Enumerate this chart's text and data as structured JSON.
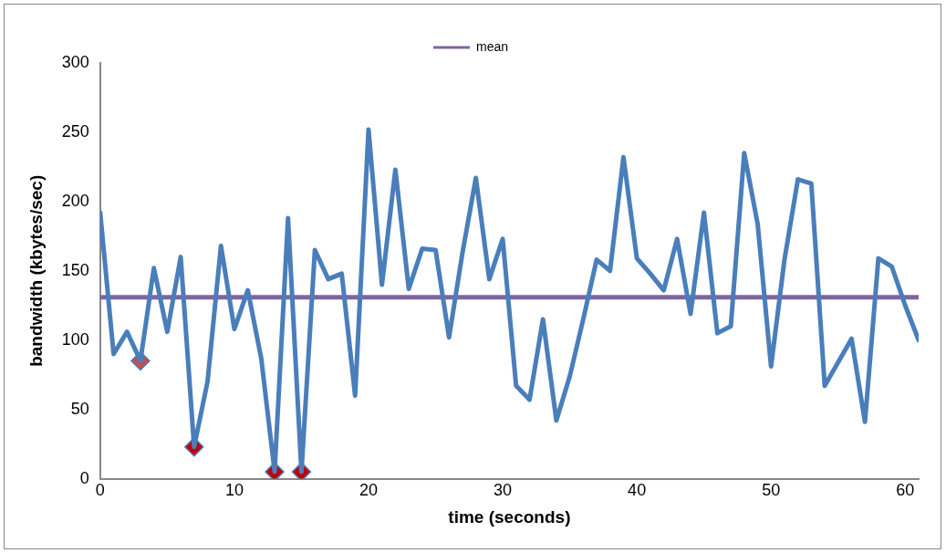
{
  "chart_data": {
    "type": "line",
    "xlabel": "time (seconds)",
    "ylabel": "bandwidth (kbytes/sec)",
    "x": [
      0,
      1,
      2,
      3,
      4,
      5,
      6,
      7,
      8,
      9,
      10,
      11,
      12,
      13,
      14,
      15,
      16,
      17,
      18,
      19,
      20,
      21,
      22,
      23,
      24,
      25,
      26,
      27,
      28,
      29,
      30,
      31,
      32,
      33,
      34,
      35,
      36,
      37,
      38,
      39,
      40,
      41,
      42,
      43,
      44,
      45,
      46,
      47,
      48,
      49,
      50,
      51,
      52,
      53,
      54,
      55,
      56,
      57,
      58,
      59,
      60,
      61
    ],
    "series": [
      {
        "color": "#4a7ebb",
        "marker": "none",
        "values": [
          192,
          90,
          106,
          85,
          152,
          106,
          160,
          23,
          70,
          168,
          108,
          136,
          87,
          5,
          188,
          5,
          165,
          144,
          148,
          60,
          252,
          140,
          223,
          137,
          166,
          165,
          102,
          163,
          217,
          144,
          173,
          67,
          57,
          115,
          42,
          74,
          115,
          158,
          150,
          232,
          159,
          148,
          136,
          173,
          119,
          192,
          105,
          110,
          235,
          184,
          81,
          158,
          216,
          213,
          67,
          84,
          101,
          41,
          159,
          153,
          125,
          100
        ]
      },
      {
        "name": "mean",
        "color": "#8064a2",
        "marker": "none",
        "x": [
          0,
          61
        ],
        "values": [
          131,
          131
        ]
      },
      {
        "type": "scatter",
        "marker": "diamond",
        "colors": [
          "#c0504d",
          "#c00000",
          "#c00000",
          "#c00000"
        ],
        "x": [
          3,
          7,
          13,
          15
        ],
        "values": [
          85,
          23,
          5,
          5
        ]
      }
    ],
    "xlim": [
      0,
      61
    ],
    "xticks": [
      0,
      10,
      20,
      30,
      40,
      50,
      60
    ],
    "ylim": [
      0,
      300
    ],
    "yticks": [
      0,
      50,
      100,
      150,
      200,
      250,
      300
    ],
    "grid": false,
    "legend": "top",
    "line_style": "solid"
  }
}
